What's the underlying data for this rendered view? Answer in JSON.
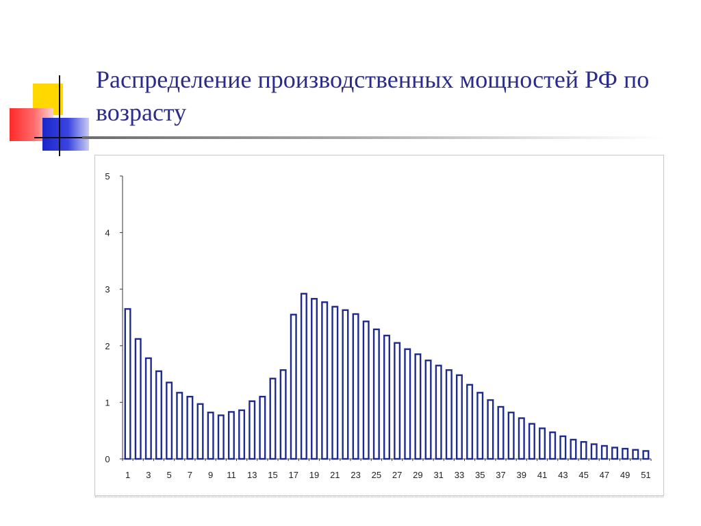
{
  "slide": {
    "title": "Распределение производственных мощностей РФ по возрасту"
  },
  "colors": {
    "title": "#2b2b8c",
    "bar_fill": "#ffffff",
    "bar_stroke": "#1f2a8f",
    "axis": "#333333",
    "tick_text": "#222222"
  },
  "chart_data": {
    "type": "bar",
    "title": "",
    "xlabel": "",
    "ylabel": "",
    "ylim": [
      0,
      5
    ],
    "yticks": [
      0,
      1,
      2,
      3,
      4,
      5
    ],
    "grid": false,
    "x": [
      1,
      2,
      3,
      4,
      5,
      6,
      7,
      8,
      9,
      10,
      11,
      12,
      13,
      14,
      15,
      16,
      17,
      18,
      19,
      20,
      21,
      22,
      23,
      24,
      25,
      26,
      27,
      28,
      29,
      30,
      31,
      32,
      33,
      34,
      35,
      36,
      37,
      38,
      39,
      40,
      41,
      42,
      43,
      44,
      45,
      46,
      47,
      48,
      49,
      50,
      51
    ],
    "xtick_labels": [
      "1",
      "3",
      "5",
      "7",
      "9",
      "11",
      "13",
      "15",
      "17",
      "19",
      "21",
      "23",
      "25",
      "27",
      "29",
      "31",
      "33",
      "35",
      "37",
      "39",
      "41",
      "43",
      "45",
      "47",
      "49",
      "51"
    ],
    "values": [
      2.65,
      2.12,
      1.78,
      1.55,
      1.35,
      1.17,
      1.1,
      0.97,
      0.82,
      0.77,
      0.83,
      0.86,
      1.02,
      1.1,
      1.42,
      1.57,
      2.55,
      2.92,
      2.83,
      2.77,
      2.69,
      2.63,
      2.56,
      2.43,
      2.29,
      2.18,
      2.05,
      1.94,
      1.85,
      1.74,
      1.65,
      1.57,
      1.48,
      1.31,
      1.17,
      1.04,
      0.92,
      0.82,
      0.72,
      0.62,
      0.54,
      0.47,
      0.4,
      0.34,
      0.3,
      0.26,
      0.23,
      0.2,
      0.18,
      0.16,
      0.14
    ]
  }
}
